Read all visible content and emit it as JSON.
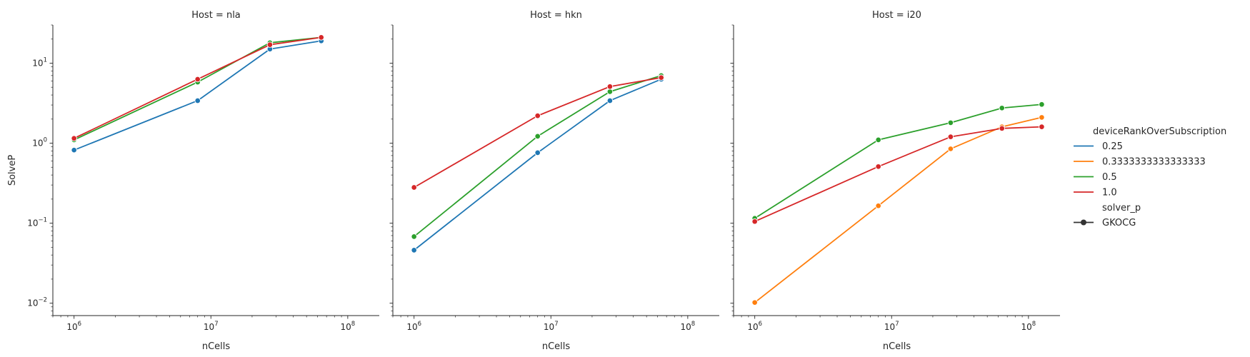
{
  "chart_data": {
    "type": "line",
    "scale": {
      "x": "log",
      "y": "log"
    },
    "xlim": [
      700000,
      170000000
    ],
    "ylim": [
      0.007,
      30
    ],
    "x_ticks": [
      1000000,
      10000000,
      100000000
    ],
    "x_tick_labels": [
      {
        "base": "10",
        "exp": "6"
      },
      {
        "base": "10",
        "exp": "7"
      },
      {
        "base": "10",
        "exp": "8"
      }
    ],
    "y_ticks": [
      0.01,
      0.1,
      1,
      10
    ],
    "y_tick_labels": [
      {
        "base": "10",
        "exp": "−2"
      },
      {
        "base": "10",
        "exp": "−1"
      },
      {
        "base": "10",
        "exp": "0"
      },
      {
        "base": "10",
        "exp": "1"
      }
    ],
    "xlabel": "nCells",
    "ylabel": "SolveP",
    "grid": false,
    "legend_position": "right",
    "legend": {
      "hue_title": "deviceRankOverSubscription",
      "hue_entries": [
        {
          "label": "0.25",
          "color": "#1f77b4"
        },
        {
          "label": "0.3333333333333333",
          "color": "#ff7f0e"
        },
        {
          "label": "0.5",
          "color": "#2ca02c"
        },
        {
          "label": "1.0",
          "color": "#d62728"
        }
      ],
      "style_title": "solver_p",
      "style_entries": [
        {
          "label": "GKOCG",
          "color": "#333333",
          "marker": "circle"
        }
      ]
    },
    "panels": [
      {
        "title": "Host = nla",
        "series": [
          {
            "name": "0.25",
            "color": "#1f77b4",
            "points": [
              [
                1000000,
                0.82
              ],
              [
                8000000,
                3.4
              ],
              [
                27000000,
                15
              ],
              [
                64000000,
                19
              ]
            ]
          },
          {
            "name": "0.5",
            "color": "#2ca02c",
            "points": [
              [
                1000000,
                1.1
              ],
              [
                8000000,
                5.8
              ],
              [
                27000000,
                18
              ],
              [
                64000000,
                21
              ]
            ]
          },
          {
            "name": "1.0",
            "color": "#d62728",
            "points": [
              [
                1000000,
                1.15
              ],
              [
                8000000,
                6.3
              ],
              [
                27000000,
                17
              ],
              [
                64000000,
                21
              ]
            ]
          }
        ]
      },
      {
        "title": "Host = hkn",
        "series": [
          {
            "name": "0.25",
            "color": "#1f77b4",
            "points": [
              [
                1000000,
                0.046
              ],
              [
                8000000,
                0.76
              ],
              [
                27000000,
                3.4
              ],
              [
                64000000,
                6.3
              ]
            ]
          },
          {
            "name": "0.5",
            "color": "#2ca02c",
            "points": [
              [
                1000000,
                0.068
              ],
              [
                8000000,
                1.22
              ],
              [
                27000000,
                4.4
              ],
              [
                64000000,
                7.0
              ]
            ]
          },
          {
            "name": "1.0",
            "color": "#d62728",
            "points": [
              [
                1000000,
                0.28
              ],
              [
                8000000,
                2.2
              ],
              [
                27000000,
                5.1
              ],
              [
                64000000,
                6.6
              ]
            ]
          }
        ]
      },
      {
        "title": "Host = i20",
        "series": [
          {
            "name": "0.3333333333333333",
            "color": "#ff7f0e",
            "points": [
              [
                1000000,
                0.0102
              ],
              [
                8000000,
                0.165
              ],
              [
                27000000,
                0.85
              ],
              [
                64000000,
                1.6
              ],
              [
                125000000,
                2.1
              ]
            ]
          },
          {
            "name": "0.5",
            "color": "#2ca02c",
            "points": [
              [
                1000000,
                0.115
              ],
              [
                8000000,
                1.1
              ],
              [
                27000000,
                1.8
              ],
              [
                64000000,
                2.75
              ],
              [
                125000000,
                3.05
              ]
            ]
          },
          {
            "name": "1.0",
            "color": "#d62728",
            "points": [
              [
                1000000,
                0.105
              ],
              [
                8000000,
                0.51
              ],
              [
                27000000,
                1.2
              ],
              [
                64000000,
                1.53
              ],
              [
                125000000,
                1.6
              ]
            ]
          }
        ]
      }
    ]
  }
}
